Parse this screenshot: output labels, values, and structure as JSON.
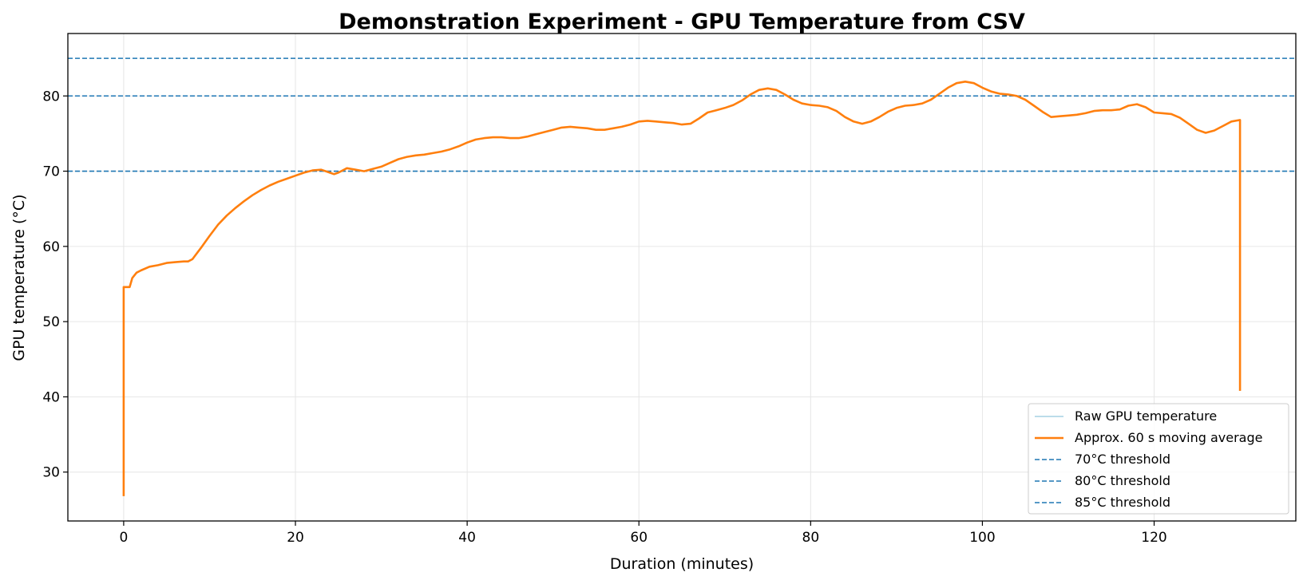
{
  "chart_data": {
    "type": "line",
    "title": "Demonstration Experiment - GPU Temperature from CSV",
    "xlabel": "Duration (minutes)",
    "ylabel": "GPU temperature (°C)",
    "xlim": [
      -6.5,
      136.5
    ],
    "ylim": [
      23.5,
      88.3
    ],
    "xticks": [
      0,
      20,
      40,
      60,
      80,
      100,
      120
    ],
    "yticks": [
      30,
      40,
      50,
      60,
      70,
      80
    ],
    "grid": true,
    "legend_position": "lower-right",
    "colors": {
      "raw": "#a6d0e4",
      "average": "#ff7f0e",
      "threshold": "#1f77b4"
    },
    "series": [
      {
        "name": "Raw GPU temperature",
        "x": [
          0,
          0,
          0.3,
          0.7,
          1,
          1.5,
          2,
          3,
          4,
          5,
          6,
          7,
          7.5,
          8,
          9,
          10,
          11,
          12,
          13,
          14,
          15,
          16,
          17,
          18,
          19,
          20,
          21,
          22,
          23,
          24,
          24.5,
          25,
          26,
          27,
          28,
          29,
          30,
          31,
          32,
          33,
          34,
          35,
          36,
          37,
          38,
          39,
          40,
          41,
          42,
          43,
          44,
          45,
          46,
          47,
          48,
          49,
          50,
          51,
          52,
          53,
          54,
          55,
          56,
          57,
          58,
          59,
          60,
          61,
          62,
          63,
          64,
          65,
          66,
          67,
          68,
          69,
          70,
          71,
          72,
          73,
          74,
          75,
          76,
          77,
          78,
          79,
          80,
          81,
          82,
          83,
          84,
          85,
          86,
          87,
          88,
          89,
          90,
          91,
          92,
          93,
          94,
          95,
          96,
          97,
          98,
          99,
          100,
          101,
          102,
          103,
          104,
          105,
          106,
          107,
          108,
          109,
          110,
          111,
          112,
          113,
          114,
          115,
          116,
          117,
          118,
          119,
          120,
          121,
          122,
          123,
          124,
          125,
          126,
          127,
          128,
          129,
          130,
          130
        ],
        "y": [
          26.8,
          54.6,
          54.6,
          54.6,
          55.8,
          56.5,
          56.8,
          57.3,
          57.5,
          57.8,
          57.9,
          58.0,
          58.0,
          58.3,
          59.8,
          61.4,
          62.9,
          64.1,
          65.1,
          66.0,
          66.8,
          67.5,
          68.1,
          68.6,
          69.0,
          69.4,
          69.8,
          70.1,
          70.2,
          69.8,
          69.6,
          69.8,
          70.4,
          70.2,
          70.0,
          70.3,
          70.6,
          71.1,
          71.6,
          71.9,
          72.1,
          72.2,
          72.4,
          72.6,
          72.9,
          73.3,
          73.8,
          74.2,
          74.4,
          74.5,
          74.5,
          74.4,
          74.4,
          74.6,
          74.9,
          75.2,
          75.5,
          75.8,
          75.9,
          75.8,
          75.7,
          75.5,
          75.5,
          75.7,
          75.9,
          76.2,
          76.6,
          76.7,
          76.6,
          76.5,
          76.4,
          76.2,
          76.3,
          77.0,
          77.8,
          78.1,
          78.4,
          78.8,
          79.4,
          80.2,
          80.8,
          81.0,
          80.8,
          80.2,
          79.5,
          79.0,
          78.8,
          78.7,
          78.5,
          78.0,
          77.2,
          76.6,
          76.3,
          76.6,
          77.2,
          77.9,
          78.4,
          78.7,
          78.8,
          79.0,
          79.5,
          80.3,
          81.1,
          81.7,
          81.9,
          81.7,
          81.1,
          80.6,
          80.3,
          80.2,
          80.0,
          79.5,
          78.7,
          77.9,
          77.2,
          77.3,
          77.4,
          77.5,
          77.7,
          78.0,
          78.1,
          78.1,
          78.2,
          78.7,
          78.9,
          78.5,
          77.8,
          77.7,
          77.6,
          77.1,
          76.3,
          75.5,
          75.1,
          75.4,
          76.0,
          76.6,
          76.8,
          40.8
        ]
      },
      {
        "name": "Approx. 60 s moving average",
        "x": [
          0,
          0,
          0.3,
          0.7,
          1,
          1.5,
          2,
          3,
          4,
          5,
          6,
          7,
          7.5,
          8,
          9,
          10,
          11,
          12,
          13,
          14,
          15,
          16,
          17,
          18,
          19,
          20,
          21,
          22,
          23,
          24,
          24.5,
          25,
          26,
          27,
          28,
          29,
          30,
          31,
          32,
          33,
          34,
          35,
          36,
          37,
          38,
          39,
          40,
          41,
          42,
          43,
          44,
          45,
          46,
          47,
          48,
          49,
          50,
          51,
          52,
          53,
          54,
          55,
          56,
          57,
          58,
          59,
          60,
          61,
          62,
          63,
          64,
          65,
          66,
          67,
          68,
          69,
          70,
          71,
          72,
          73,
          74,
          75,
          76,
          77,
          78,
          79,
          80,
          81,
          82,
          83,
          84,
          85,
          86,
          87,
          88,
          89,
          90,
          91,
          92,
          93,
          94,
          95,
          96,
          97,
          98,
          99,
          100,
          101,
          102,
          103,
          104,
          105,
          106,
          107,
          108,
          109,
          110,
          111,
          112,
          113,
          114,
          115,
          116,
          117,
          118,
          119,
          120,
          121,
          122,
          123,
          124,
          125,
          126,
          127,
          128,
          129,
          130,
          130
        ],
        "y": [
          26.8,
          54.6,
          54.6,
          54.6,
          55.8,
          56.5,
          56.8,
          57.3,
          57.5,
          57.8,
          57.9,
          58.0,
          58.0,
          58.3,
          59.8,
          61.4,
          62.9,
          64.1,
          65.1,
          66.0,
          66.8,
          67.5,
          68.1,
          68.6,
          69.0,
          69.4,
          69.8,
          70.1,
          70.2,
          69.8,
          69.6,
          69.8,
          70.4,
          70.2,
          70.0,
          70.3,
          70.6,
          71.1,
          71.6,
          71.9,
          72.1,
          72.2,
          72.4,
          72.6,
          72.9,
          73.3,
          73.8,
          74.2,
          74.4,
          74.5,
          74.5,
          74.4,
          74.4,
          74.6,
          74.9,
          75.2,
          75.5,
          75.8,
          75.9,
          75.8,
          75.7,
          75.5,
          75.5,
          75.7,
          75.9,
          76.2,
          76.6,
          76.7,
          76.6,
          76.5,
          76.4,
          76.2,
          76.3,
          77.0,
          77.8,
          78.1,
          78.4,
          78.8,
          79.4,
          80.2,
          80.8,
          81.0,
          80.8,
          80.2,
          79.5,
          79.0,
          78.8,
          78.7,
          78.5,
          78.0,
          77.2,
          76.6,
          76.3,
          76.6,
          77.2,
          77.9,
          78.4,
          78.7,
          78.8,
          79.0,
          79.5,
          80.3,
          81.1,
          81.7,
          81.9,
          81.7,
          81.1,
          80.6,
          80.3,
          80.2,
          80.0,
          79.5,
          78.7,
          77.9,
          77.2,
          77.3,
          77.4,
          77.5,
          77.7,
          78.0,
          78.1,
          78.1,
          78.2,
          78.7,
          78.9,
          78.5,
          77.8,
          77.7,
          77.6,
          77.1,
          76.3,
          75.5,
          75.1,
          75.4,
          76.0,
          76.6,
          76.8,
          40.8
        ]
      }
    ],
    "thresholds": [
      {
        "name": "70°C threshold",
        "y": 70
      },
      {
        "name": "80°C threshold",
        "y": 80
      },
      {
        "name": "85°C threshold",
        "y": 85
      }
    ]
  }
}
